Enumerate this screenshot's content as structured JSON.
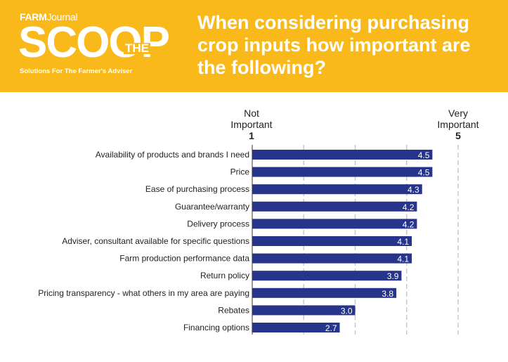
{
  "header": {
    "brand_top": "FARM",
    "brand_top_suffix": "Journal",
    "brand_main": "SCOOP",
    "brand_the": "THE",
    "brand_tagline": "Solutions For The Farmer's Adviser",
    "question_lines": [
      "When considering purchasing",
      "crop inputs how important are",
      "the following?"
    ]
  },
  "colors": {
    "banner": "#f9b91b",
    "bar": "#26358b",
    "grid": "#c8c8c8"
  },
  "chart_data": {
    "type": "bar",
    "orientation": "horizontal",
    "xlim": [
      1,
      5
    ],
    "axis_low": {
      "line1": "Not",
      "line2": "Important",
      "value": "1"
    },
    "axis_high": {
      "line1": "Very",
      "line2": "Important",
      "value": "5"
    },
    "grid": true,
    "categories": [
      "Availability of products and brands I need",
      "Price",
      "Ease of purchasing process",
      "Guarantee/warranty",
      "Delivery process",
      "Adviser, consultant available for specific questions",
      "Farm production performance data",
      "Return policy",
      "Pricing transparency - what others in my area are paying",
      "Rebates",
      "Financing options"
    ],
    "values": [
      4.5,
      4.5,
      4.3,
      4.2,
      4.2,
      4.1,
      4.1,
      3.9,
      3.8,
      3.0,
      2.7
    ],
    "value_labels": [
      "4.5",
      "4.5",
      "4.3",
      "4.2",
      "4.2",
      "4.1",
      "4.1",
      "3.9",
      "3.8",
      "3.0",
      "2.7"
    ]
  }
}
